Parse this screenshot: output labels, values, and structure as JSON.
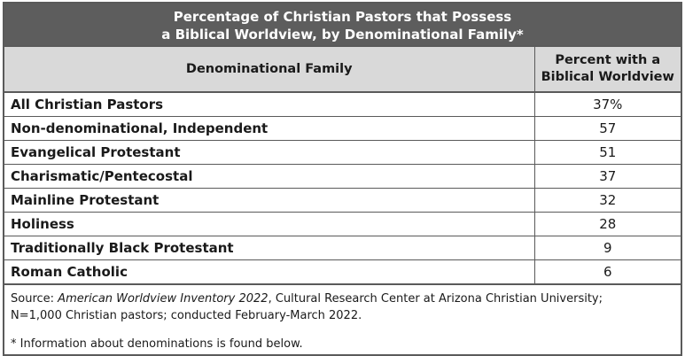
{
  "title_line1": "Percentage of Christian Pastors that Possess",
  "title_line2": "a Biblical Worldview, by Denominational Family*",
  "chart_data": {
    "type": "table",
    "columns": [
      "Denominational Family",
      "Percent with a Biblical Worldview"
    ],
    "column_header_lines": {
      "name": "Denominational Family",
      "value_line1": "Percent with a",
      "value_line2": "Biblical Worldview"
    },
    "rows": [
      {
        "label": "All Christian Pastors",
        "value": "37%"
      },
      {
        "label": "Non-denominational, Independent",
        "value": "57"
      },
      {
        "label": "Evangelical Protestant",
        "value": "51"
      },
      {
        "label": "Charismatic/Pentecostal",
        "value": "37"
      },
      {
        "label": "Mainline Protestant",
        "value": "32"
      },
      {
        "label": "Holiness",
        "value": "28"
      },
      {
        "label": "Traditionally Black Protestant",
        "value": "9"
      },
      {
        "label": "Roman Catholic",
        "value": "6"
      }
    ]
  },
  "source": {
    "prefix": "Source: ",
    "title": "American Worldview Inventory 2022",
    "suffix": ", Cultural Research Center at Arizona Christian University;",
    "line2": "N=1,000 Christian pastors; conducted February-March 2022."
  },
  "footnote": "* Information about denominations is found below.",
  "colors": {
    "title_bg": "#5d5d5d",
    "header_bg": "#d9d9d9",
    "border": "#5a5a5a"
  }
}
